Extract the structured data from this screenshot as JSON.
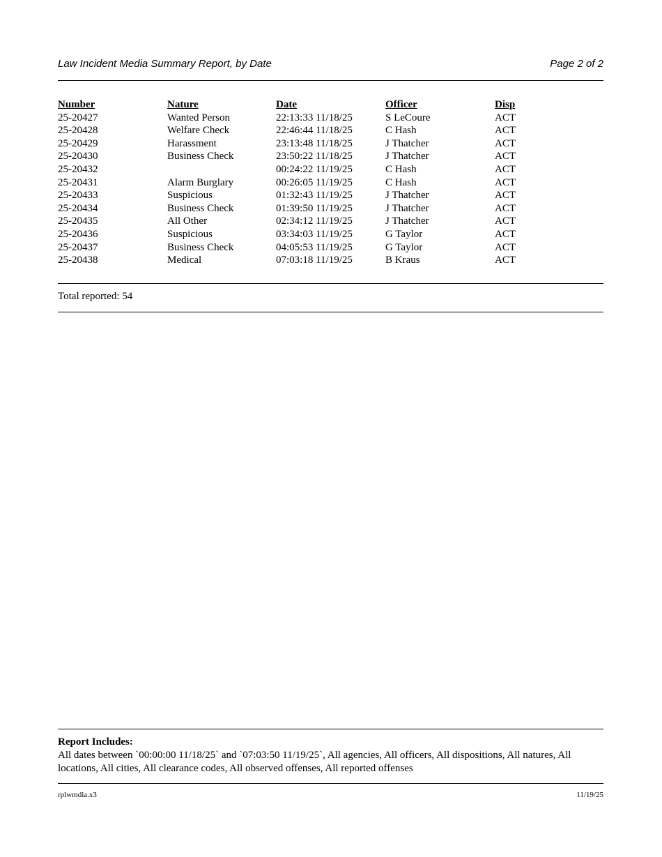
{
  "header": {
    "title": "Law Incident Media Summary Report, by Date",
    "page": "Page 2 of 2"
  },
  "table": {
    "columns": [
      "Number",
      "Nature",
      "Date",
      "Officer",
      "Disp"
    ],
    "rows": [
      [
        "25-20427",
        "Wanted Person",
        "22:13:33 11/18/25",
        "S LeCoure",
        "ACT"
      ],
      [
        "25-20428",
        "Welfare Check",
        "22:46:44 11/18/25",
        "C Hash",
        "ACT"
      ],
      [
        "25-20429",
        "Harassment",
        "23:13:48 11/18/25",
        "J Thatcher",
        "ACT"
      ],
      [
        "25-20430",
        "Business Check",
        "23:50:22 11/18/25",
        "J Thatcher",
        "ACT"
      ],
      [
        "25-20432",
        "",
        "00:24:22 11/19/25",
        "C Hash",
        "ACT"
      ],
      [
        "25-20431",
        "Alarm Burglary",
        "00:26:05 11/19/25",
        "C Hash",
        "ACT"
      ],
      [
        "25-20433",
        "Suspicious",
        "01:32:43 11/19/25",
        "J Thatcher",
        "ACT"
      ],
      [
        "25-20434",
        "Business Check",
        "01:39:50 11/19/25",
        "J Thatcher",
        "ACT"
      ],
      [
        "25-20435",
        "All Other",
        "02:34:12 11/19/25",
        "J Thatcher",
        "ACT"
      ],
      [
        "25-20436",
        "Suspicious",
        "03:34:03 11/19/25",
        "G Taylor",
        "ACT"
      ],
      [
        "25-20437",
        "Business Check",
        "04:05:53 11/19/25",
        "G Taylor",
        "ACT"
      ],
      [
        "25-20438",
        "Medical",
        "07:03:18 11/19/25",
        "B Kraus",
        "ACT"
      ]
    ]
  },
  "total": "Total reported: 54",
  "includes": {
    "title": "Report Includes:",
    "text": "All dates between `00:00:00 11/18/25` and `07:03:50 11/19/25`, All agencies, All officers, All dispositions, All natures, All locations, All cities, All clearance codes, All observed offenses, All reported offenses"
  },
  "footer": {
    "program": "rplwmdia.x3",
    "date": "11/19/25"
  }
}
